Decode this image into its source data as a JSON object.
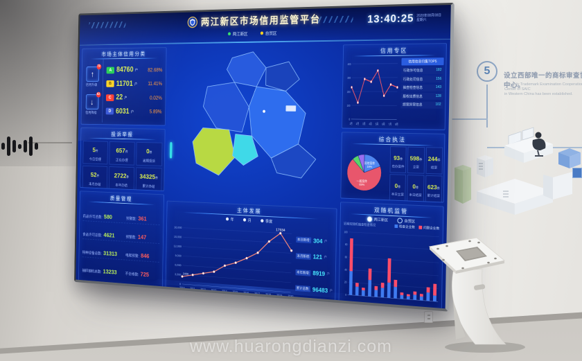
{
  "watermark": "www.huarongdianzi.com",
  "wall": {
    "step_number": "5",
    "headline_zh": "设立西部唯一的商标审查协作中心。",
    "headline_en_line1": "The only Trademark Examination Cooperation Center of SAIC",
    "headline_en_line2": "in Western China has been established."
  },
  "screen": {
    "header": {
      "title": "两江新区市场信用监管平台",
      "clock": "13:40:25",
      "date": "2020年08月08日",
      "weekday": "星期六",
      "toggles": [
        {
          "label": "两江新区",
          "dot_color": "#3ae06e"
        },
        {
          "label": "自贸区",
          "dot_color": "#ffd21f"
        }
      ]
    },
    "credit_panel": {
      "title": "市场主体信用分类",
      "up_button": {
        "badge": "79",
        "label": "信用升级"
      },
      "down_button": {
        "badge": "63",
        "label": "信用降级"
      },
      "rows": [
        {
          "grade": "A",
          "color": "#21cf52",
          "value": "84760",
          "unit": "户",
          "pct": "82.68%"
        },
        {
          "grade": "B",
          "color": "#ffd21f",
          "value": "11701",
          "unit": "户",
          "pct": "11.41%"
        },
        {
          "grade": "C",
          "color": "#ff3b30",
          "value": "22",
          "unit": "户",
          "pct": "0.02%"
        },
        {
          "grade": "D",
          "color": "#3555d6",
          "value": "6031",
          "unit": "户",
          "pct": "5.89%"
        }
      ]
    },
    "complaint_panel": {
      "title": "投诉举报",
      "cells": [
        {
          "value": "5",
          "unit": "件",
          "label": "今日受理"
        },
        {
          "value": "657",
          "unit": "件",
          "label": "正在办理"
        },
        {
          "value": "0",
          "unit": "件",
          "label": "逾期投诉"
        },
        {
          "value": "52",
          "unit": "件",
          "label": "本月办结"
        },
        {
          "value": "2722",
          "unit": "件",
          "label": "本年办结"
        },
        {
          "value": "34325",
          "unit": "件",
          "label": "累计办结"
        }
      ]
    },
    "quality_panel": {
      "title": "质量管理",
      "rows": [
        {
          "l_label": "药品许可总数:",
          "l_value": "580",
          "r_label": "预警数:",
          "r_value": "361"
        },
        {
          "l_label": "食品许可总数:",
          "l_value": "4621",
          "r_label": "预警数:",
          "r_value": "147"
        },
        {
          "l_label": "特种设备总数:",
          "l_value": "31313",
          "r_label": "电梯预警:",
          "r_value": "846"
        },
        {
          "l_label": "抽样抽检总数:",
          "l_value": "13233",
          "r_label": "不合格数:",
          "r_value": "725"
        }
      ]
    },
    "development_panel": {
      "title": "主体发展",
      "legend": [
        "年",
        "月",
        "季度"
      ],
      "chart": {
        "type": "line",
        "x": [
          "2010",
          "2011",
          "2012",
          "2013",
          "2014",
          "2015",
          "2016",
          "2017",
          "2018",
          "2019",
          "2020"
        ],
        "values": [
          2408,
          3150,
          3900,
          4650,
          6800,
          7950,
          9600,
          11500,
          15200,
          17934,
          12800
        ],
        "y_ticks": [
          "18,000",
          "15,000",
          "12,000",
          "9,000",
          "6,000",
          "3,000",
          "0"
        ],
        "y_max": 18000,
        "peak_label": "17934",
        "first_label": "2408",
        "line_color": "#ff8a78"
      },
      "stats": [
        {
          "label": "本日新增:",
          "value": "304",
          "unit": "户"
        },
        {
          "label": "本月新增:",
          "value": "121",
          "unit": "户"
        },
        {
          "label": "本年新增:",
          "value": "8919",
          "unit": "户"
        },
        {
          "label": "累计总数:",
          "value": "96483",
          "unit": "户"
        }
      ]
    },
    "trend_panel": {
      "title": "信用专区",
      "chart": {
        "type": "line",
        "x": [
          "1月",
          "2月",
          "3月",
          "4月",
          "5月",
          "6月",
          "7月",
          "8月"
        ],
        "values": [
          230,
          120,
          290,
          270,
          350,
          170,
          250,
          230
        ],
        "y_ticks": [
          "400",
          "300",
          "200",
          "100",
          "0"
        ],
        "y_max": 400,
        "line_color": "#ff5a66"
      },
      "list_header": "信用信息归集TOP5",
      "list": [
        {
          "label": "行政许可信息",
          "value": "182"
        },
        {
          "label": "行政处罚信息",
          "value": "156"
        },
        {
          "label": "抽查检查信息",
          "value": "143"
        },
        {
          "label": "股权出质信息",
          "value": "128"
        },
        {
          "label": "经营异常信息",
          "value": "102"
        }
      ]
    },
    "enforcement_panel": {
      "title": "综合执法",
      "pie": {
        "type": "pie",
        "slices": [
          {
            "label": "其他案件",
            "pct": 19,
            "color": "#4f86f0"
          },
          {
            "label": "一般案件",
            "pct": 69,
            "color": "#e8566c"
          },
          {
            "label": "",
            "pct": 6,
            "color": "#58d66a"
          },
          {
            "label": "",
            "pct": 6,
            "color": "#9a6ef0"
          }
        ]
      },
      "tiles": [
        {
          "value": "93",
          "unit": "件",
          "label": "在办案件"
        },
        {
          "value": "598",
          "unit": "件",
          "label": "立案"
        },
        {
          "value": "244",
          "unit": "件",
          "label": "结案"
        },
        {
          "value": "0",
          "unit": "件",
          "label": "本日立案"
        },
        {
          "value": "0",
          "unit": "件",
          "label": "本日结案"
        },
        {
          "value": "623",
          "unit": "件",
          "label": "累计结案"
        }
      ]
    },
    "random_panel": {
      "title": "双随机监管",
      "options": [
        {
          "label": "两江新区",
          "selected": true
        },
        {
          "label": "自贸区",
          "selected": false
        }
      ],
      "caption": "近期双随机抽查检查情况",
      "legend": [
        {
          "label": "检查企业数",
          "color": "#3f7bf0"
        },
        {
          "label": "问题企业数",
          "color": "#ff4d6a"
        }
      ],
      "chart": {
        "type": "stacked_bars",
        "y_max": 100,
        "colors": [
          "#3f7bf0",
          "#ff4d6a"
        ],
        "pairs": [
          [
            38,
            52
          ],
          [
            14,
            6
          ],
          [
            9,
            4
          ],
          [
            26,
            18
          ],
          [
            11,
            6
          ],
          [
            15,
            8
          ],
          [
            24,
            38
          ],
          [
            18,
            11
          ],
          [
            6,
            4
          ],
          [
            5,
            3
          ],
          [
            8,
            5
          ],
          [
            6,
            4
          ],
          [
            13,
            8
          ],
          [
            9,
            18
          ]
        ]
      }
    }
  }
}
